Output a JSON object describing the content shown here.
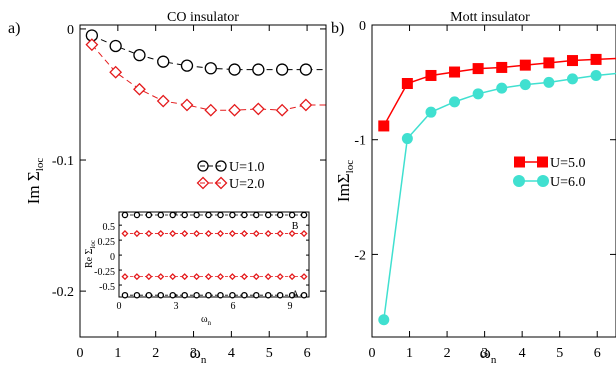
{
  "chart_data": [
    {
      "type": "line",
      "panel_label": "a)",
      "title": "CO insulator",
      "xlabel": "ω",
      "xlabel_sub": "n",
      "ylabel": "Im Σ",
      "ylabel_sub": "loc",
      "xlim": [
        0,
        6.5
      ],
      "ylim": [
        -0.235,
        0.003
      ],
      "xticks": [
        0,
        1,
        2,
        3,
        4,
        5,
        6
      ],
      "yticks": [
        0,
        -0.1,
        -0.2
      ],
      "ytick_labels": [
        "0",
        "-0.1",
        "-0.2"
      ],
      "legend_position": "center-right",
      "series": [
        {
          "name": "U=1.0",
          "color": "#000000",
          "marker": "circle-open",
          "line": "dashed",
          "x": [
            0.314,
            0.942,
            1.571,
            2.199,
            2.827,
            3.456,
            4.084,
            4.712,
            5.341,
            5.969,
            6.597
          ],
          "y": [
            -0.005,
            -0.013,
            -0.02,
            -0.025,
            -0.028,
            -0.03,
            -0.031,
            -0.031,
            -0.031,
            -0.031,
            -0.031
          ]
        },
        {
          "name": "U=2.0",
          "color": "#e41a1c",
          "marker": "diamond-open",
          "line": "dashed",
          "x": [
            0.314,
            0.942,
            1.571,
            2.199,
            2.827,
            3.456,
            4.084,
            4.712,
            5.341,
            5.969,
            6.597
          ],
          "y": [
            -0.012,
            -0.033,
            -0.046,
            -0.055,
            -0.058,
            -0.062,
            -0.062,
            -0.061,
            -0.062,
            -0.058,
            -0.058
          ]
        }
      ],
      "inset": {
        "ylabel": "Re Σ",
        "ylabel_sub": "loc",
        "xlabel": "ω",
        "xlabel_sub": "n",
        "xlim": [
          0,
          10
        ],
        "ylim": [
          -0.7,
          0.72
        ],
        "xticks": [
          0,
          3,
          6,
          9
        ],
        "yticks": [
          0.5,
          0.25,
          0,
          -0.25,
          -0.5
        ],
        "ytick_labels": [
          "0.5",
          "0.25",
          "0",
          "-0.25",
          "-0.5"
        ],
        "annotations": [
          {
            "text": "B",
            "x": 9.3,
            "y": 0.5
          },
          {
            "text": "A",
            "x": 9.3,
            "y": -0.64
          }
        ],
        "series": [
          {
            "name": "U=1.0 B",
            "color": "#000000",
            "marker": "circle-open",
            "values": 0.67
          },
          {
            "name": "U=2.0 B",
            "color": "#e41a1c",
            "marker": "diamond-open",
            "values": 0.36
          },
          {
            "name": "U=2.0 A",
            "color": "#e41a1c",
            "marker": "diamond-open",
            "values": -0.36
          },
          {
            "name": "U=1.0 A",
            "color": "#000000",
            "marker": "circle-open",
            "values": -0.67
          }
        ],
        "x": [
          0.314,
          0.942,
          1.571,
          2.199,
          2.827,
          3.456,
          4.084,
          4.712,
          5.341,
          5.969,
          6.597,
          7.226,
          7.854,
          8.482,
          9.111,
          9.739
        ]
      }
    },
    {
      "type": "line",
      "panel_label": "b)",
      "title": "Mott insulator",
      "xlabel": "ω",
      "xlabel_sub": "n",
      "ylabel": "ImΣ",
      "ylabel_sub": "loc",
      "xlim": [
        0,
        6.5
      ],
      "ylim": [
        -2.72,
        0
      ],
      "xticks": [
        0,
        1,
        2,
        3,
        4,
        5,
        6
      ],
      "yticks": [
        0,
        -1,
        -2
      ],
      "ytick_labels": [
        "0",
        "-1",
        "-2"
      ],
      "legend_position": "center-right",
      "series": [
        {
          "name": "U=5.0",
          "color": "#ff0000",
          "marker": "square-filled",
          "line": "solid",
          "x": [
            0.314,
            0.942,
            1.571,
            2.199,
            2.827,
            3.456,
            4.084,
            4.712,
            5.341,
            5.969,
            6.597
          ],
          "y": [
            -0.88,
            -0.51,
            -0.44,
            -0.41,
            -0.38,
            -0.37,
            -0.35,
            -0.33,
            -0.31,
            -0.3,
            -0.29
          ]
        },
        {
          "name": "U=6.0",
          "color": "#40e0d0",
          "marker": "circle-filled",
          "line": "solid",
          "x": [
            0.314,
            0.942,
            1.571,
            2.199,
            2.827,
            3.456,
            4.084,
            4.712,
            5.341,
            5.969,
            6.597
          ],
          "y": [
            -2.57,
            -0.99,
            -0.76,
            -0.67,
            -0.6,
            -0.55,
            -0.52,
            -0.5,
            -0.47,
            -0.44,
            -0.42
          ]
        }
      ]
    }
  ]
}
